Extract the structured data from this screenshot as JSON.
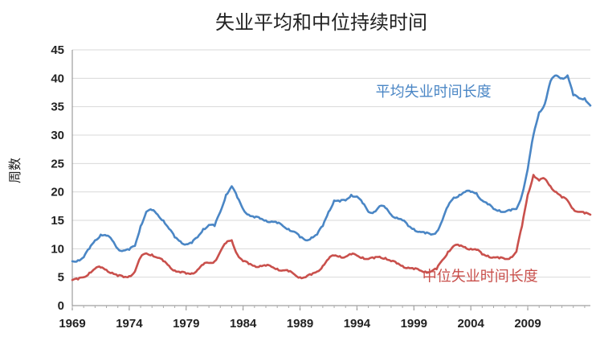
{
  "chart_data": {
    "type": "line",
    "title": "失业平均和中位持续时间",
    "ylabel": "周数",
    "xlabel": "",
    "xlim": [
      1969,
      2014.5
    ],
    "ylim": [
      0,
      45
    ],
    "yticks": [
      0,
      5,
      10,
      15,
      20,
      25,
      30,
      35,
      40,
      45
    ],
    "xticks": [
      1969,
      1974,
      1979,
      1984,
      1989,
      1994,
      1999,
      2004,
      2009
    ],
    "grid": "horizontal",
    "series": [
      {
        "name": "平均失业时间长度",
        "color": "#4a86c5",
        "x": [
          1969,
          1969.5,
          1970,
          1970.5,
          1971,
          1971.5,
          1972,
          1972.5,
          1973,
          1973.5,
          1974,
          1974.5,
          1975,
          1975.5,
          1976,
          1976.5,
          1977,
          1977.5,
          1978,
          1978.5,
          1979,
          1979.5,
          1980,
          1980.5,
          1981,
          1981.5,
          1982,
          1982.5,
          1983,
          1983.5,
          1984,
          1984.5,
          1985,
          1985.5,
          1986,
          1986.5,
          1987,
          1987.5,
          1988,
          1988.5,
          1989,
          1989.5,
          1990,
          1990.5,
          1991,
          1991.5,
          1992,
          1992.5,
          1993,
          1993.5,
          1994,
          1994.5,
          1995,
          1995.5,
          1996,
          1996.5,
          1997,
          1997.5,
          1998,
          1998.5,
          1999,
          1999.5,
          2000,
          2000.5,
          2001,
          2001.5,
          2002,
          2002.5,
          2003,
          2003.5,
          2004,
          2004.5,
          2005,
          2005.5,
          2006,
          2006.5,
          2007,
          2007.5,
          2008,
          2008.5,
          2009,
          2009.5,
          2010,
          2010.5,
          2011,
          2011.5,
          2012,
          2012.5,
          2013,
          2013.5,
          2014,
          2014.5
        ],
        "values": [
          7.8,
          8,
          8.5,
          10,
          11.5,
          12.5,
          12.3,
          11.5,
          10,
          9.7,
          9.8,
          10.5,
          14,
          16.5,
          16.8,
          16,
          15,
          13.5,
          12,
          11.3,
          10.8,
          11,
          12,
          13.5,
          14.2,
          14,
          16.5,
          19.5,
          21,
          19,
          17,
          16,
          15.5,
          15.3,
          15,
          14.8,
          14.5,
          14,
          13.5,
          13,
          12,
          11.5,
          12,
          12.5,
          14,
          16.5,
          18.5,
          18.3,
          18.5,
          19.5,
          19.2,
          18,
          16.5,
          16.5,
          17.5,
          17.2,
          16,
          15.5,
          15,
          14,
          13.5,
          13,
          12.7,
          12.5,
          13,
          15,
          17.5,
          19,
          19.5,
          20,
          20,
          19.8,
          18.5,
          17.8,
          17,
          16.8,
          16.5,
          16.7,
          17,
          19.5,
          24,
          30,
          34,
          35.5,
          39.5,
          40.5,
          40,
          40.5,
          37,
          36.5,
          36.5,
          35.2
        ]
      },
      {
        "name": "中位失业时间长度",
        "color": "#c9504c",
        "x": [
          1969,
          1969.5,
          1970,
          1970.5,
          1971,
          1971.5,
          1972,
          1972.5,
          1973,
          1973.5,
          1974,
          1974.5,
          1975,
          1975.5,
          1976,
          1976.5,
          1977,
          1977.5,
          1978,
          1978.5,
          1979,
          1979.5,
          1980,
          1980.5,
          1981,
          1981.5,
          1982,
          1982.5,
          1983,
          1983.5,
          1984,
          1984.5,
          1985,
          1985.5,
          1986,
          1986.5,
          1987,
          1987.5,
          1988,
          1988.5,
          1989,
          1989.5,
          1990,
          1990.5,
          1991,
          1991.5,
          1992,
          1992.5,
          1993,
          1993.5,
          1994,
          1994.5,
          1995,
          1995.5,
          1996,
          1996.5,
          1997,
          1997.5,
          1998,
          1998.5,
          1999,
          1999.5,
          2000,
          2000.5,
          2001,
          2001.5,
          2002,
          2002.5,
          2003,
          2003.5,
          2004,
          2004.5,
          2005,
          2005.5,
          2006,
          2006.5,
          2007,
          2007.5,
          2008,
          2008.5,
          2009,
          2009.5,
          2010,
          2010.5,
          2011,
          2011.5,
          2012,
          2012.5,
          2013,
          2013.5,
          2014,
          2014.5
        ],
        "values": [
          4.5,
          4.6,
          5,
          5.8,
          6.5,
          6.7,
          6.3,
          5.8,
          5.2,
          5,
          5.2,
          6,
          8.5,
          9.2,
          9,
          8.4,
          7.8,
          7,
          6.2,
          5.8,
          5.6,
          5.7,
          6.3,
          7.2,
          7.5,
          7.8,
          9.5,
          11,
          11.5,
          9,
          7.8,
          7.3,
          7,
          7,
          7,
          6.8,
          6.5,
          6.2,
          6,
          5.5,
          5,
          5,
          5.4,
          6,
          7,
          8.2,
          8.8,
          8.7,
          8.6,
          9,
          8.8,
          8.5,
          8.2,
          8.3,
          8.6,
          8.4,
          7.8,
          7.4,
          7,
          6.7,
          6.4,
          6.2,
          6,
          6,
          6.4,
          8,
          9.5,
          10.5,
          10.5,
          10.3,
          10,
          9.8,
          9,
          8.8,
          8.5,
          8.3,
          8.2,
          8.5,
          9.5,
          14,
          19.5,
          23,
          22,
          22.3,
          21,
          20,
          19,
          18.5,
          17,
          16.5,
          16.2,
          16
        ]
      }
    ],
    "annotations": [
      {
        "text": "平均失业时间长度",
        "series": 0,
        "x": 2005.8,
        "y": 36.8
      },
      {
        "text": "中位失业时间长度",
        "series": 1,
        "x": 2009.9,
        "y": 4.3
      }
    ]
  }
}
